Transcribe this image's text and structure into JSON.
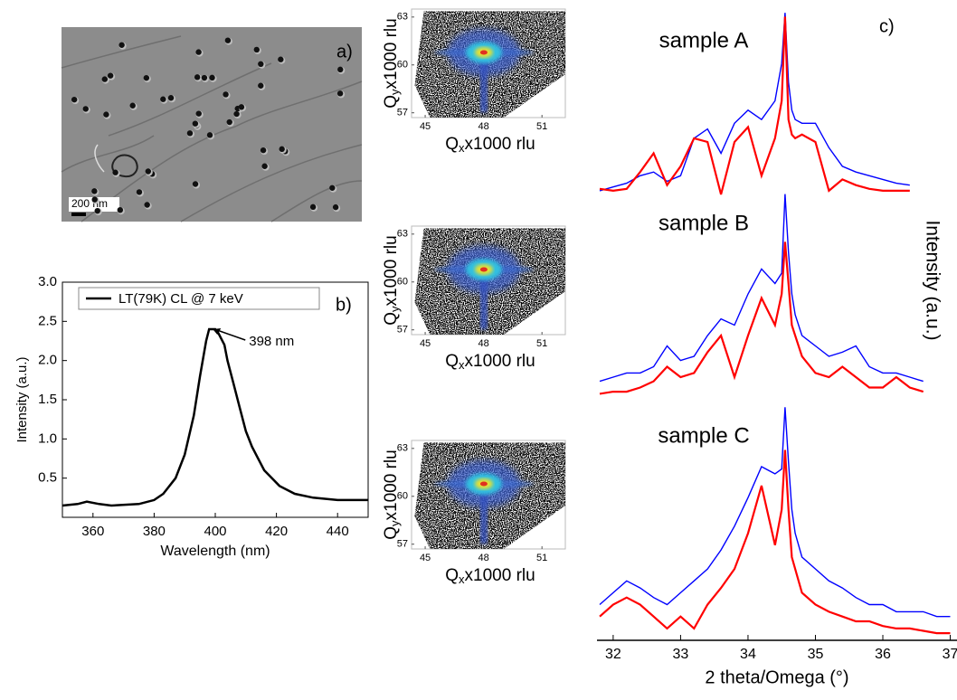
{
  "panel_a": {
    "label": "a)",
    "scale_bar": "200 nm"
  },
  "chart_data": [
    {
      "type": "line",
      "panel_label": "b)",
      "x_label": "Wavelength (nm)",
      "y_label": "Intensity (a.u.)",
      "legend": "upper left",
      "annotation": "398 nm",
      "xlim": [
        350,
        450
      ],
      "xticks": [
        360,
        380,
        400,
        420,
        440
      ],
      "ylim": [
        0,
        3
      ],
      "yticks": [
        0.5,
        {
          "value": 1,
          "label": "1.0"
        },
        1.5,
        {
          "value": 2,
          "label": "2.0"
        },
        2.5,
        {
          "value": 3,
          "label": "3.0"
        }
      ],
      "x": [
        350,
        355,
        358,
        362,
        366,
        375,
        380,
        383,
        387,
        390,
        393,
        395,
        397,
        398,
        400,
        401,
        403,
        404,
        406,
        408,
        410,
        412,
        416,
        421,
        426,
        432,
        440,
        450
      ],
      "series": [
        {
          "name": "LT(79K) CL @ 7 keV",
          "color": "#000000",
          "values": [
            0.15,
            0.17,
            0.2,
            0.17,
            0.15,
            0.17,
            0.22,
            0.3,
            0.5,
            0.8,
            1.3,
            1.8,
            2.25,
            2.4,
            2.4,
            2.35,
            2.2,
            2.0,
            1.7,
            1.4,
            1.1,
            0.9,
            0.6,
            0.4,
            0.3,
            0.25,
            0.22,
            0.22
          ]
        }
      ]
    },
    {
      "type": "rsm",
      "x_label": {
        "symbol": "Q",
        "sub": "x",
        "rest": "x1000 rlu"
      },
      "y_label": {
        "symbol": "Q",
        "sub": "y",
        "rest": "x1000 rlu"
      },
      "xlim": [
        44.3,
        52.2
      ],
      "xticks": [
        45,
        48,
        51
      ],
      "ylim": [
        56.7,
        63.5
      ],
      "yticks": [
        57,
        60,
        63
      ]
    },
    {
      "type": "rsm",
      "x_label": {
        "symbol": "Q",
        "sub": "x",
        "rest": "x1000 rlu"
      },
      "y_label": {
        "symbol": "Q",
        "sub": "y",
        "rest": "x1000 rlu"
      },
      "xlim": [
        44.3,
        52.2
      ],
      "xticks": [
        45,
        48,
        51
      ],
      "ylim": [
        56.7,
        63.5
      ],
      "yticks": [
        57,
        60,
        63
      ]
    },
    {
      "type": "rsm",
      "x_label": {
        "symbol": "Q",
        "sub": "x",
        "rest": "x1000 rlu"
      },
      "y_label": {
        "symbol": "Q",
        "sub": "y",
        "rest": "x1000 rlu"
      },
      "xlim": [
        44.3,
        52.2
      ],
      "xticks": [
        45,
        48,
        51
      ],
      "ylim": [
        56.7,
        63.5
      ],
      "yticks": [
        57,
        60,
        63
      ]
    },
    {
      "type": "xrd",
      "title": "sample A",
      "panel_label": "c)",
      "xlim": [
        31.76,
        37.1
      ],
      "ylim": [
        0,
        1
      ],
      "x": [
        31.8,
        32.0,
        32.2,
        32.4,
        32.6,
        32.8,
        33.0,
        33.2,
        33.4,
        33.6,
        33.8,
        34.0,
        34.2,
        34.4,
        34.5,
        34.55,
        34.6,
        34.65,
        34.7,
        34.8,
        35.0,
        35.2,
        35.4,
        35.6,
        35.8,
        36.0,
        36.2,
        36.4,
        36.6,
        36.8,
        37.0
      ],
      "series": [
        {
          "color": "#0000ff",
          "values": [
            0.02,
            0.04,
            0.06,
            0.1,
            0.12,
            0.07,
            0.1,
            0.3,
            0.35,
            0.22,
            0.38,
            0.45,
            0.4,
            0.5,
            0.7,
            0.97,
            0.6,
            0.45,
            0.4,
            0.38,
            0.38,
            0.25,
            0.15,
            0.12,
            0.1,
            0.08,
            0.06,
            0.05,
            null,
            null,
            null
          ]
        },
        {
          "color": "#ff0000",
          "values": [
            0.03,
            0.02,
            0.03,
            0.12,
            0.22,
            0.05,
            0.15,
            0.3,
            0.28,
            0.0,
            0.28,
            0.36,
            0.1,
            0.3,
            0.5,
            0.95,
            0.4,
            0.32,
            0.3,
            0.32,
            0.28,
            0.02,
            0.08,
            0.05,
            0.03,
            0.02,
            0.02,
            0.02,
            null,
            null,
            null
          ]
        }
      ]
    },
    {
      "type": "xrd",
      "title": "sample B",
      "y_label": "Intensity (a.u.)",
      "xlim": [
        31.76,
        37.1
      ],
      "ylim": [
        0,
        1
      ],
      "x": [
        31.8,
        32.0,
        32.2,
        32.4,
        32.6,
        32.8,
        33.0,
        33.2,
        33.4,
        33.6,
        33.8,
        34.0,
        34.2,
        34.4,
        34.5,
        34.55,
        34.6,
        34.65,
        34.7,
        34.8,
        35.0,
        35.2,
        35.4,
        35.6,
        35.8,
        36.0,
        36.2,
        36.4,
        36.6,
        36.8,
        37.0
      ],
      "series": [
        {
          "color": "#0000ff",
          "values": [
            0.08,
            0.1,
            0.12,
            0.12,
            0.15,
            0.25,
            0.18,
            0.2,
            0.3,
            0.38,
            0.35,
            0.5,
            0.62,
            0.55,
            0.6,
            0.98,
            0.7,
            0.5,
            0.4,
            0.3,
            0.25,
            0.2,
            0.22,
            0.25,
            0.15,
            0.12,
            0.12,
            0.1,
            0.08,
            null,
            null
          ]
        },
        {
          "color": "#ff0000",
          "values": [
            0.02,
            0.03,
            0.03,
            0.05,
            0.08,
            0.15,
            0.1,
            0.12,
            0.22,
            0.3,
            0.1,
            0.3,
            0.48,
            0.35,
            0.5,
            0.75,
            0.55,
            0.35,
            0.3,
            0.2,
            0.12,
            0.1,
            0.15,
            0.1,
            0.05,
            0.05,
            0.1,
            0.05,
            0.03,
            null,
            null
          ]
        }
      ]
    },
    {
      "type": "xrd",
      "title": "sample C",
      "x_label": "2 theta/Omega (°)",
      "xlim": [
        31.76,
        37.1
      ],
      "xticks": [
        32,
        33,
        34,
        35,
        36,
        37
      ],
      "ylim": [
        0,
        1
      ],
      "x": [
        31.8,
        32.0,
        32.2,
        32.4,
        32.6,
        32.8,
        33.0,
        33.2,
        33.4,
        33.6,
        33.8,
        34.0,
        34.2,
        34.4,
        34.5,
        34.55,
        34.6,
        34.65,
        34.7,
        34.8,
        35.0,
        35.2,
        35.4,
        35.6,
        35.8,
        36.0,
        36.2,
        36.4,
        36.6,
        36.8,
        37.0
      ],
      "series": [
        {
          "color": "#0000ff",
          "values": [
            0.15,
            0.2,
            0.25,
            0.22,
            0.18,
            0.15,
            0.2,
            0.25,
            0.3,
            0.38,
            0.48,
            0.6,
            0.73,
            0.7,
            0.72,
            0.98,
            0.75,
            0.55,
            0.45,
            0.35,
            0.3,
            0.25,
            0.22,
            0.18,
            0.15,
            0.15,
            0.12,
            0.12,
            0.12,
            0.1,
            0.1
          ]
        },
        {
          "color": "#ff0000",
          "values": [
            0.1,
            0.15,
            0.18,
            0.15,
            0.1,
            0.05,
            0.1,
            0.05,
            0.15,
            0.22,
            0.3,
            0.45,
            0.65,
            0.4,
            0.55,
            0.8,
            0.55,
            0.35,
            0.3,
            0.2,
            0.15,
            0.12,
            0.1,
            0.08,
            0.08,
            0.06,
            0.05,
            0.05,
            0.04,
            0.03,
            0.03
          ]
        }
      ]
    }
  ]
}
